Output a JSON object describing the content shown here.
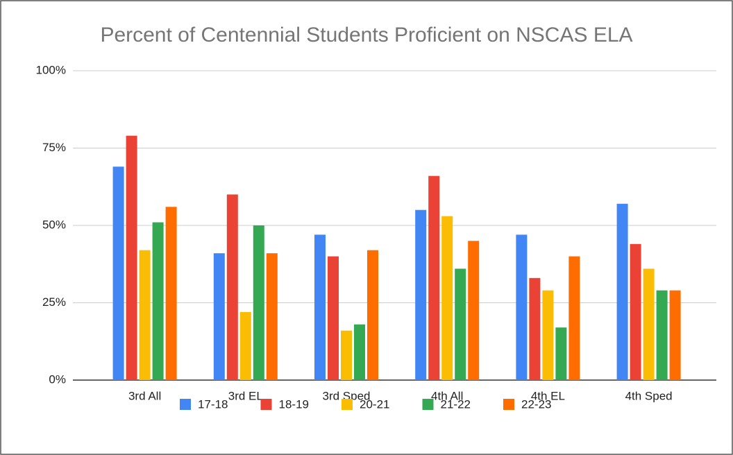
{
  "chart_data": {
    "type": "bar",
    "title": "Percent of Centennial Students Proficient on NSCAS ELA",
    "categories": [
      "3rd All",
      "3rd EL",
      "3rd Sped",
      "4th All",
      "4th EL",
      "4th Sped"
    ],
    "series": [
      {
        "name": "17-18",
        "color": "#4285f4",
        "values": [
          69,
          41,
          47,
          55,
          47,
          57
        ]
      },
      {
        "name": "18-19",
        "color": "#ea4335",
        "values": [
          79,
          60,
          40,
          66,
          33,
          44
        ]
      },
      {
        "name": "20-21",
        "color": "#fbbc04",
        "values": [
          42,
          22,
          16,
          53,
          29,
          36
        ]
      },
      {
        "name": "21-22",
        "color": "#34a853",
        "values": [
          51,
          50,
          18,
          36,
          17,
          29
        ]
      },
      {
        "name": "22-23",
        "color": "#ff6d01",
        "values": [
          56,
          41,
          42,
          45,
          40,
          29
        ]
      }
    ],
    "ylim": [
      0,
      100
    ],
    "yticks": [
      {
        "value": 0,
        "label": "0%"
      },
      {
        "value": 25,
        "label": "25%"
      },
      {
        "value": 50,
        "label": "50%"
      },
      {
        "value": 75,
        "label": "75%"
      },
      {
        "value": 100,
        "label": "100%"
      }
    ],
    "grid": true,
    "legend": "bottom"
  }
}
